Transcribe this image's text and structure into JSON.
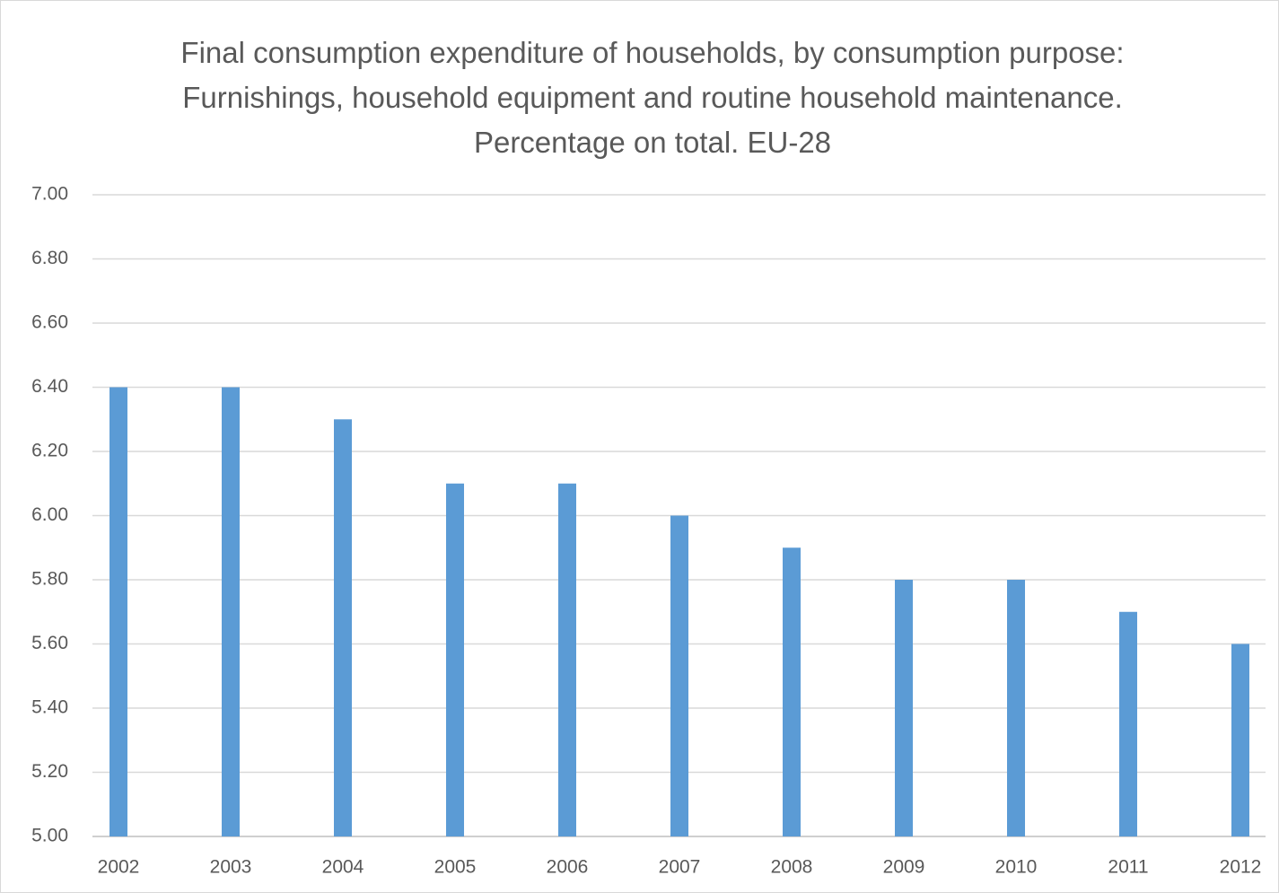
{
  "chart_data": {
    "type": "bar",
    "title": "Final consumption expenditure of households, by consumption purpose: Furnishings, household equipment and routine household maintenance. Percentage on total. EU-28",
    "categories": [
      "2002",
      "2003",
      "2004",
      "2005",
      "2006",
      "2007",
      "2008",
      "2009",
      "2010",
      "2011",
      "2012"
    ],
    "values": [
      6.4,
      6.4,
      6.3,
      6.1,
      6.1,
      6.0,
      5.9,
      5.8,
      5.8,
      5.7,
      5.6
    ],
    "color": "#5b9bd5",
    "ylim": [
      5,
      7
    ],
    "yticks": [
      {
        "value": 5,
        "label": "5.00"
      },
      {
        "value": 5.2,
        "label": "5.20"
      },
      {
        "value": 5.4,
        "label": "5.40"
      },
      {
        "value": 5.6,
        "label": "5.60"
      },
      {
        "value": 5.8,
        "label": "5.80"
      },
      {
        "value": 6,
        "label": "6.00"
      },
      {
        "value": 6.2,
        "label": "6.20"
      },
      {
        "value": 6.4,
        "label": "6.40"
      },
      {
        "value": 6.6,
        "label": "6.60"
      },
      {
        "value": 6.8,
        "label": "6.80"
      },
      {
        "value": 7,
        "label": "7.00"
      }
    ],
    "grid": true
  }
}
